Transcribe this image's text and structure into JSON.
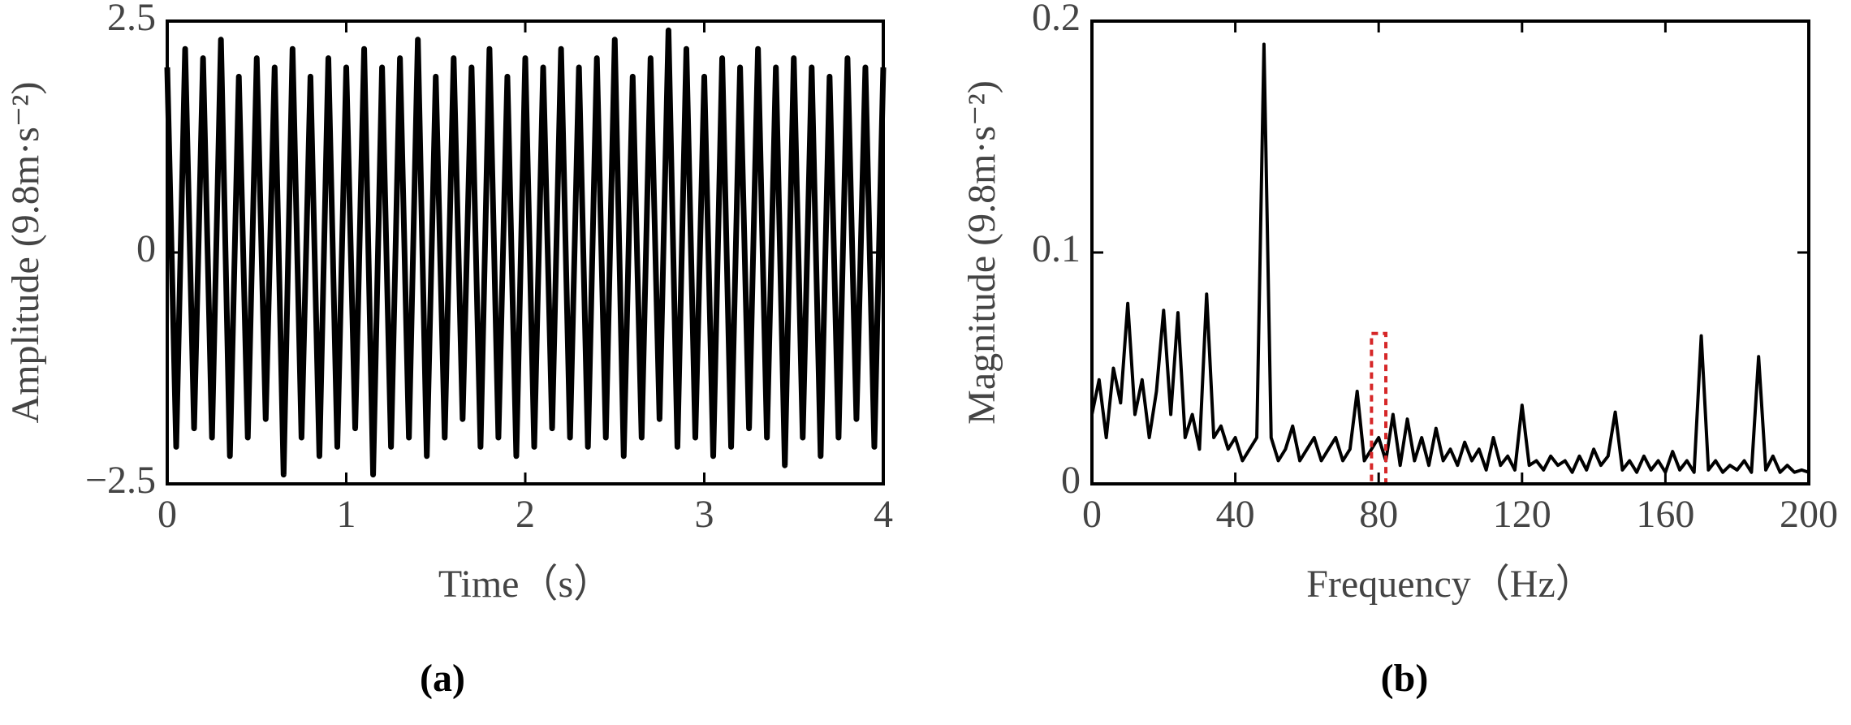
{
  "chart_data": [
    {
      "type": "line",
      "subplot_label": "(a)",
      "xlabel": "Time（s）",
      "ylabel": "Amplitude (9.8m·s⁻²)",
      "color": "#000000",
      "x": [
        0,
        0.05,
        0.1,
        0.15,
        0.2,
        0.25,
        0.3,
        0.35,
        0.4,
        0.45,
        0.5,
        0.55,
        0.6,
        0.65,
        0.7,
        0.75,
        0.8,
        0.85,
        0.9,
        0.95,
        1,
        1.05,
        1.1,
        1.15,
        1.2,
        1.25,
        1.3,
        1.35,
        1.4,
        1.45,
        1.5,
        1.55,
        1.6,
        1.65,
        1.7,
        1.75,
        1.8,
        1.85,
        1.9,
        1.95,
        2,
        2.05,
        2.1,
        2.15,
        2.2,
        2.25,
        2.3,
        2.35,
        2.4,
        2.45,
        2.5,
        2.55,
        2.6,
        2.65,
        2.7,
        2.75,
        2.8,
        2.85,
        2.9,
        2.95,
        3,
        3.05,
        3.1,
        3.15,
        3.2,
        3.25,
        3.3,
        3.35,
        3.4,
        3.45,
        3.5,
        3.55,
        3.6,
        3.65,
        3.7,
        3.75,
        3.8,
        3.85,
        3.9,
        3.95,
        4
      ],
      "values": [
        2.0,
        -2.1,
        2.2,
        -1.9,
        2.1,
        -2.0,
        2.3,
        -2.2,
        1.9,
        -2.0,
        2.1,
        -1.8,
        2.0,
        -2.4,
        2.2,
        -2.0,
        1.9,
        -2.2,
        2.1,
        -2.1,
        2.0,
        -1.9,
        2.2,
        -2.4,
        2.0,
        -2.1,
        2.1,
        -2.0,
        2.3,
        -2.2,
        1.9,
        -2.0,
        2.1,
        -1.8,
        2.0,
        -2.1,
        2.2,
        -2.0,
        1.9,
        -2.2,
        2.1,
        -2.1,
        2.0,
        -1.9,
        2.2,
        -2.0,
        2.0,
        -2.1,
        2.1,
        -2.0,
        2.3,
        -2.2,
        1.9,
        -2.0,
        2.1,
        -1.8,
        2.4,
        -2.1,
        2.2,
        -2.0,
        1.9,
        -2.2,
        2.1,
        -2.1,
        2.0,
        -1.9,
        2.2,
        -2.0,
        2.0,
        -2.3,
        2.1,
        -2.0,
        2.0,
        -2.2,
        1.9,
        -2.0,
        2.1,
        -1.8,
        2.0,
        -2.1,
        2.0
      ],
      "xlim": [
        0,
        4
      ],
      "xticks": [
        0,
        1,
        2,
        3,
        4
      ],
      "ylim": [
        -2.5,
        2.5
      ],
      "yticks": [
        {
          "value": -2.5,
          "label": "−2.5"
        },
        0,
        2.5
      ]
    },
    {
      "type": "line",
      "subplot_label": "(b)",
      "xlabel": "Frequency（Hz）",
      "ylabel": "Magnitude (9.8m·s⁻²)",
      "color": "#000000",
      "x": [
        0,
        2,
        4,
        6,
        8,
        10,
        12,
        14,
        16,
        18,
        20,
        22,
        24,
        26,
        28,
        30,
        32,
        34,
        36,
        38,
        40,
        42,
        44,
        46,
        48,
        50,
        52,
        54,
        56,
        58,
        60,
        62,
        64,
        66,
        68,
        70,
        72,
        74,
        76,
        78,
        80,
        82,
        84,
        86,
        88,
        90,
        92,
        94,
        96,
        98,
        100,
        102,
        104,
        106,
        108,
        110,
        112,
        114,
        116,
        118,
        120,
        122,
        124,
        126,
        128,
        130,
        132,
        134,
        136,
        138,
        140,
        142,
        144,
        146,
        148,
        150,
        152,
        154,
        156,
        158,
        160,
        162,
        164,
        166,
        168,
        170,
        172,
        174,
        176,
        178,
        180,
        182,
        184,
        186,
        188,
        190,
        192,
        194,
        196,
        198,
        200
      ],
      "values": [
        0.03,
        0.045,
        0.02,
        0.05,
        0.035,
        0.078,
        0.03,
        0.045,
        0.02,
        0.04,
        0.075,
        0.03,
        0.074,
        0.02,
        0.03,
        0.015,
        0.082,
        0.02,
        0.025,
        0.015,
        0.02,
        0.01,
        0.015,
        0.02,
        0.19,
        0.02,
        0.01,
        0.015,
        0.025,
        0.01,
        0.015,
        0.02,
        0.01,
        0.015,
        0.02,
        0.01,
        0.015,
        0.04,
        0.01,
        0.015,
        0.02,
        0.01,
        0.03,
        0.008,
        0.028,
        0.01,
        0.02,
        0.008,
        0.024,
        0.01,
        0.015,
        0.008,
        0.018,
        0.01,
        0.015,
        0.006,
        0.02,
        0.008,
        0.012,
        0.006,
        0.034,
        0.008,
        0.01,
        0.006,
        0.012,
        0.008,
        0.01,
        0.005,
        0.012,
        0.006,
        0.015,
        0.008,
        0.012,
        0.031,
        0.006,
        0.01,
        0.005,
        0.012,
        0.006,
        0.01,
        0.005,
        0.014,
        0.006,
        0.01,
        0.005,
        0.064,
        0.006,
        0.01,
        0.005,
        0.008,
        0.006,
        0.01,
        0.005,
        0.055,
        0.006,
        0.012,
        0.005,
        0.008,
        0.005,
        0.006,
        0.005
      ],
      "xlim": [
        0,
        200
      ],
      "xticks": [
        0,
        40,
        80,
        120,
        160,
        200
      ],
      "ylim": [
        0,
        0.2
      ],
      "yticks": [
        0,
        0.1,
        0.2
      ],
      "highlight": {
        "x": [
          78,
          82
        ],
        "y": [
          0,
          0.065
        ],
        "color": "#d62728"
      }
    }
  ]
}
